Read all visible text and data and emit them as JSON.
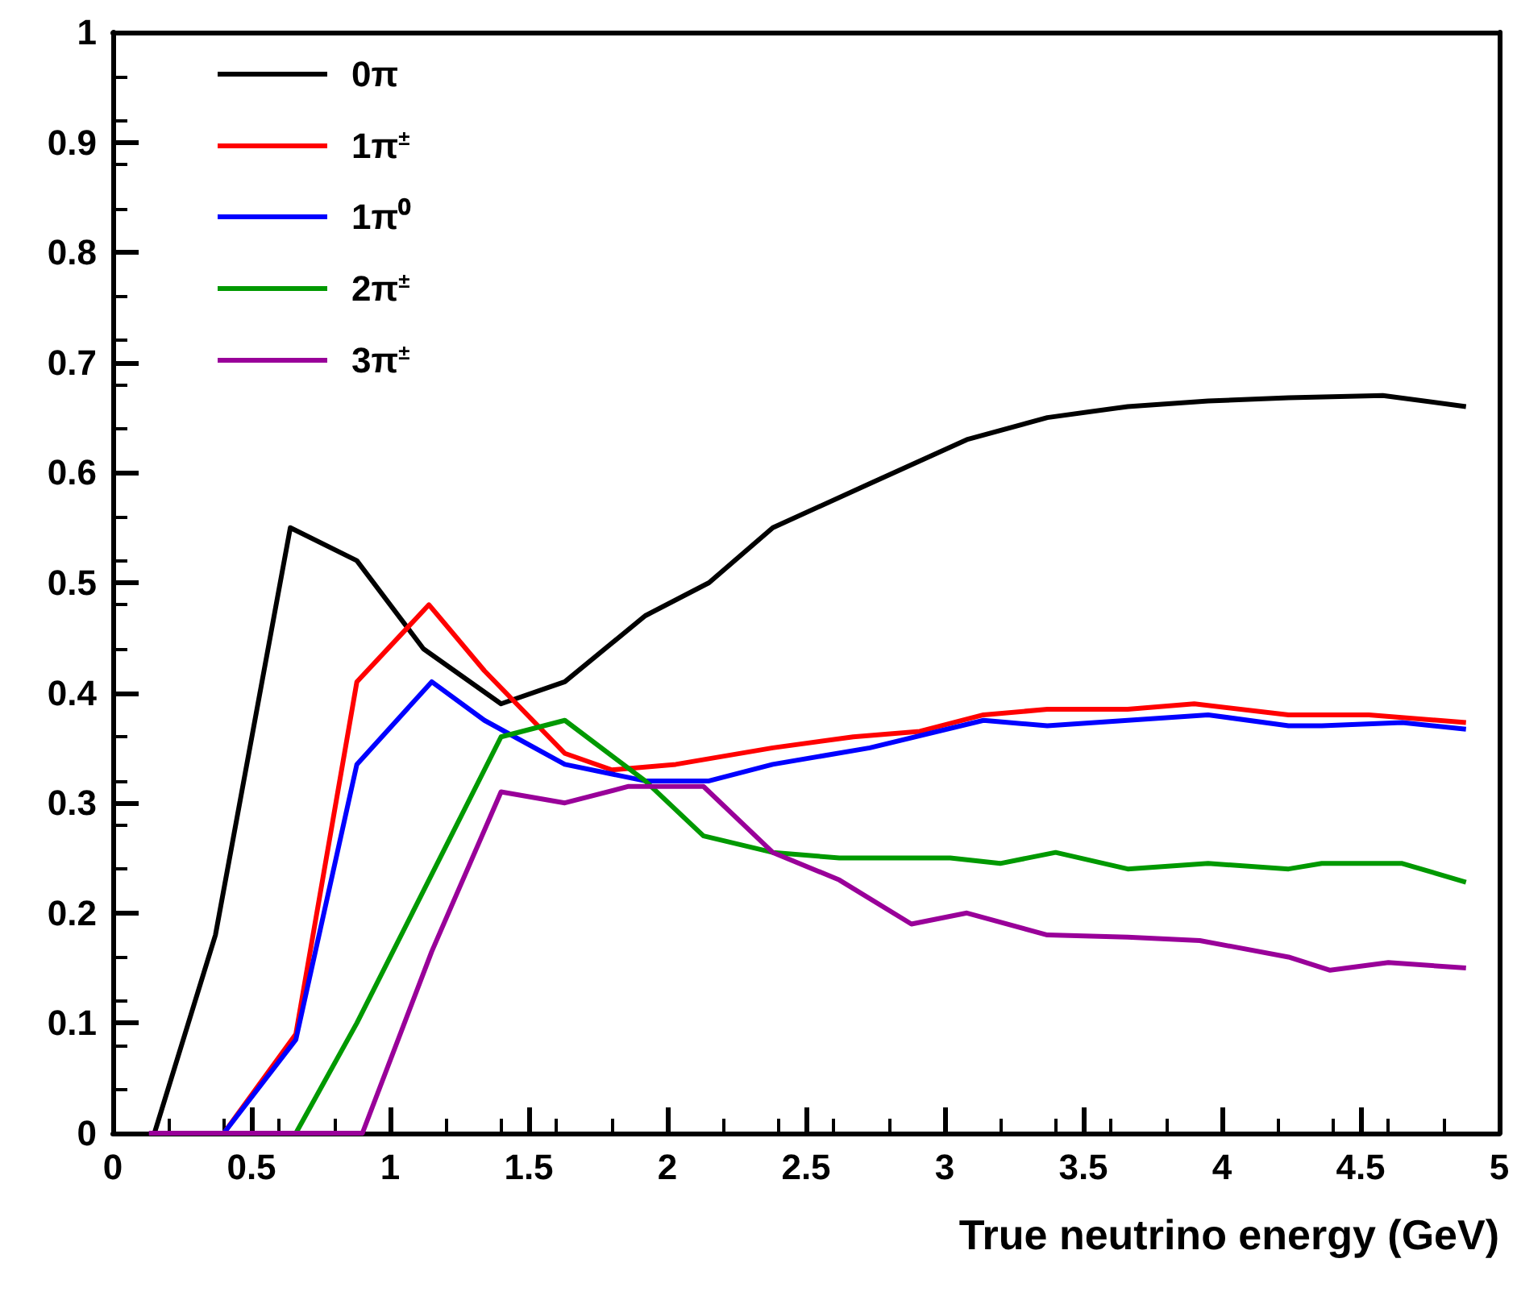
{
  "chart_data": {
    "type": "line",
    "xlabel": "True neutrino energy (GeV)",
    "xlim": [
      0,
      5
    ],
    "xticks": [
      0,
      0.5,
      1,
      1.5,
      2,
      2.5,
      3,
      3.5,
      4,
      4.5,
      5
    ],
    "ylim": [
      0,
      1
    ],
    "yticks": [
      0,
      0.1,
      0.2,
      0.3,
      0.4,
      0.5,
      0.6,
      0.7,
      0.8,
      0.9,
      1
    ],
    "grid": false,
    "legend": "top left",
    "marker": "none",
    "line_style": "solid",
    "series": [
      {
        "name": "0π",
        "color": "#000000",
        "x": [
          0.15,
          0.37,
          0.64,
          0.88,
          1.12,
          1.4,
          1.63,
          1.92,
          2.15,
          2.38,
          2.73,
          3.08,
          3.37,
          3.66,
          3.95,
          4.24,
          4.58,
          4.88
        ],
        "values": [
          0,
          0.18,
          0.55,
          0.52,
          0.44,
          0.39,
          0.41,
          0.47,
          0.5,
          0.55,
          0.59,
          0.63,
          0.65,
          0.66,
          0.665,
          0.668,
          0.67,
          0.66
        ]
      },
      {
        "name": "1π$^{±}$",
        "color": "#ff0000",
        "x": [
          0.4,
          0.66,
          0.88,
          1.14,
          1.34,
          1.63,
          1.8,
          2.03,
          2.38,
          2.67,
          2.91,
          3.14,
          3.37,
          3.66,
          3.9,
          4.24,
          4.53,
          4.88
        ],
        "values": [
          0,
          0.09,
          0.41,
          0.48,
          0.42,
          0.345,
          0.33,
          0.335,
          0.35,
          0.36,
          0.365,
          0.38,
          0.385,
          0.385,
          0.39,
          0.38,
          0.38,
          0.373
        ]
      },
      {
        "name": "1π⁰",
        "color": "#0000ff",
        "x": [
          0.4,
          0.66,
          0.88,
          1.15,
          1.34,
          1.63,
          1.92,
          2.15,
          2.38,
          2.73,
          3.14,
          3.37,
          3.66,
          3.95,
          4.24,
          4.36,
          4.65,
          4.88
        ],
        "values": [
          0,
          0.085,
          0.335,
          0.41,
          0.375,
          0.335,
          0.32,
          0.32,
          0.335,
          0.35,
          0.375,
          0.37,
          0.375,
          0.38,
          0.37,
          0.37,
          0.373,
          0.367
        ]
      },
      {
        "name": "2π$^{±}$",
        "color": "#009900",
        "x": [
          0.66,
          0.88,
          1.1,
          1.4,
          1.63,
          1.92,
          2.13,
          2.38,
          2.62,
          3.02,
          3.2,
          3.4,
          3.66,
          3.95,
          4.24,
          4.36,
          4.65,
          4.88
        ],
        "values": [
          0,
          0.1,
          0.21,
          0.36,
          0.375,
          0.32,
          0.27,
          0.255,
          0.25,
          0.25,
          0.245,
          0.255,
          0.24,
          0.245,
          0.24,
          0.245,
          0.245,
          0.228
        ]
      },
      {
        "name": "3π$^{±}$",
        "color": "#990099",
        "x": [
          0.13,
          0.9,
          1.15,
          1.4,
          1.63,
          1.86,
          2.13,
          2.38,
          2.62,
          2.88,
          3.08,
          3.37,
          3.66,
          3.92,
          4.24,
          4.39,
          4.6,
          4.88
        ],
        "values": [
          0,
          0,
          0.165,
          0.31,
          0.3,
          0.315,
          0.315,
          0.255,
          0.23,
          0.19,
          0.2,
          0.18,
          0.178,
          0.175,
          0.16,
          0.148,
          0.155,
          0.15
        ]
      }
    ]
  }
}
